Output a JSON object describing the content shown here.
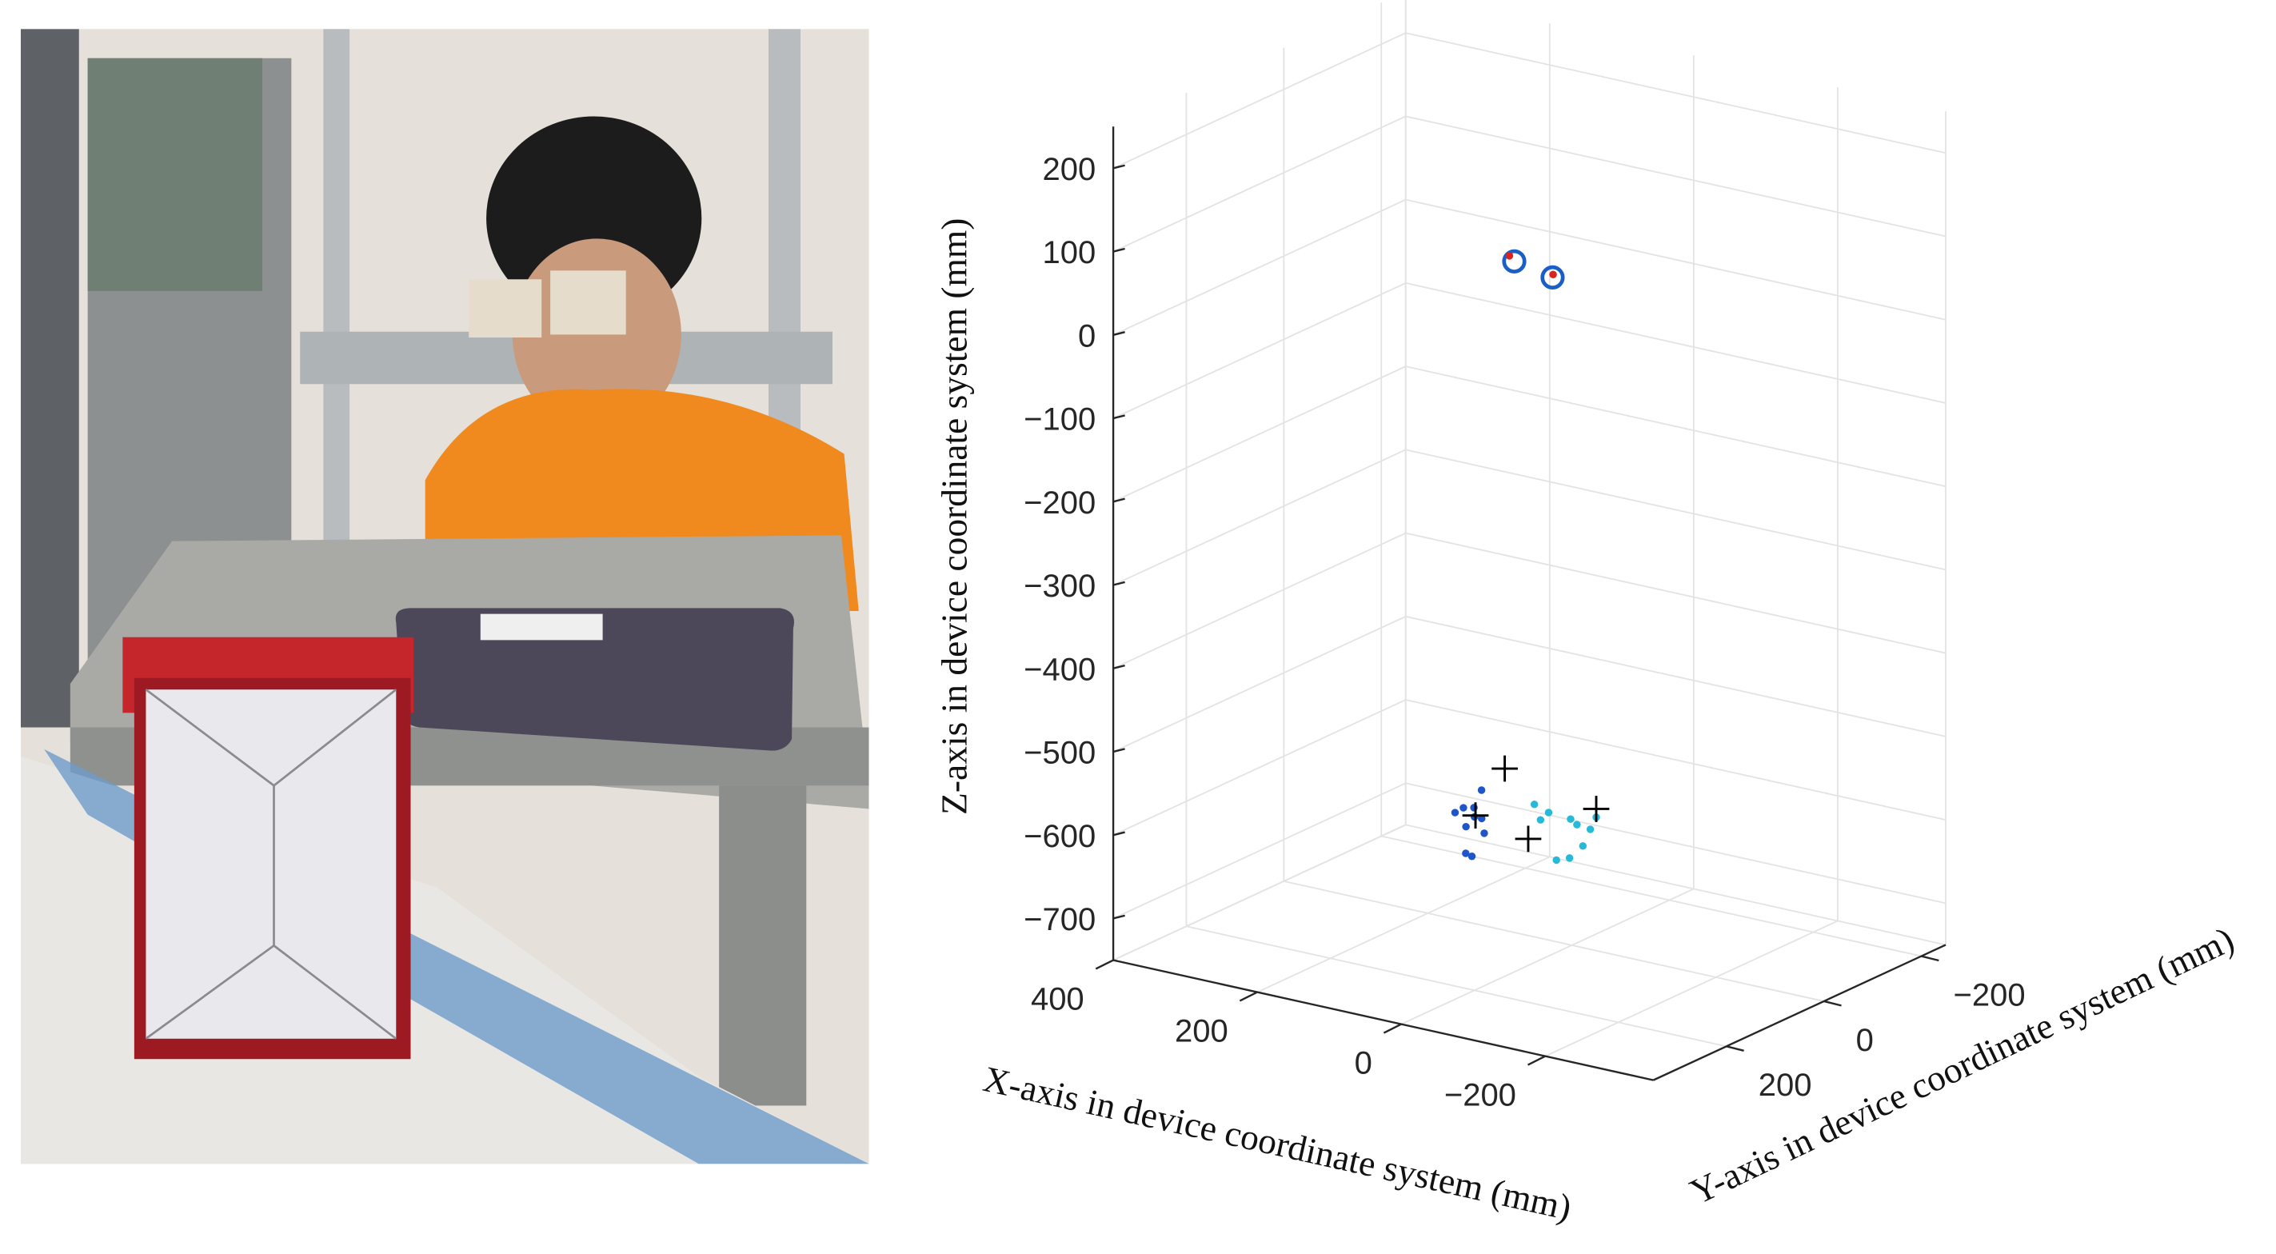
{
  "chart_data": {
    "type": "scatter3d",
    "xlabel": "X-axis in device coordinate system (mm)",
    "ylabel": "Y-axis in device coordinate system (mm)",
    "zlabel": "Z-axis in device coordinate system (mm)",
    "xlim": [
      400,
      -350
    ],
    "ylim": [
      350,
      -250
    ],
    "zlim": [
      -750,
      250
    ],
    "xticks": [
      400,
      200,
      0,
      {
        "value": -200,
        "label": "−200"
      }
    ],
    "yticks": [
      {
        "value": -200,
        "label": "−200"
      },
      0,
      200
    ],
    "zticks": [
      200,
      100,
      0,
      {
        "value": -100,
        "label": "−100"
      },
      {
        "value": -200,
        "label": "−200"
      },
      {
        "value": -300,
        "label": "−300"
      },
      {
        "value": -400,
        "label": "−400"
      },
      {
        "value": -500,
        "label": "−500"
      },
      {
        "value": -600,
        "label": "−600"
      },
      {
        "value": -700,
        "label": "−700"
      }
    ],
    "grid": true,
    "series": [
      {
        "marker": "open-circle",
        "color": "#1a5fc8",
        "x": [
          80,
          20
        ],
        "y": [
          0,
          10
        ],
        "z": [
          55,
          50
        ]
      },
      {
        "marker": "dot",
        "color": "#d9231d",
        "x": [
          84,
          22
        ],
        "y": [
          4,
          6
        ],
        "z": [
          62,
          52
        ]
      },
      {
        "marker": "dot",
        "color": "#1e55c9",
        "x": [
          110,
          95,
          120,
          100,
          88,
          115,
          105,
          92,
          125,
          98
        ],
        "y": [
          60,
          45,
          40,
          70,
          55,
          30,
          50,
          65,
          55,
          35
        ],
        "z": [
          -590,
          -570,
          -620,
          -640,
          -600,
          -610,
          -650,
          -585,
          -600,
          -625
        ]
      },
      {
        "marker": "dot",
        "color": "#26b9d8",
        "x": [
          20,
          5,
          30,
          10,
          0,
          25,
          15,
          -5,
          35,
          12
        ],
        "y": [
          -40,
          -30,
          20,
          -10,
          -50,
          40,
          -60,
          10,
          -20,
          30
        ],
        "z": [
          -620,
          -640,
          -600,
          -650,
          -610,
          -575,
          -630,
          -595,
          -660,
          -585
        ]
      },
      {
        "marker": "plus",
        "color": "#000000",
        "x": [
          100,
          100,
          20,
          0
        ],
        "y": [
          50,
          -10,
          60,
          -50
        ],
        "z": [
          -600,
          -560,
          -610,
          -600
        ]
      }
    ]
  }
}
